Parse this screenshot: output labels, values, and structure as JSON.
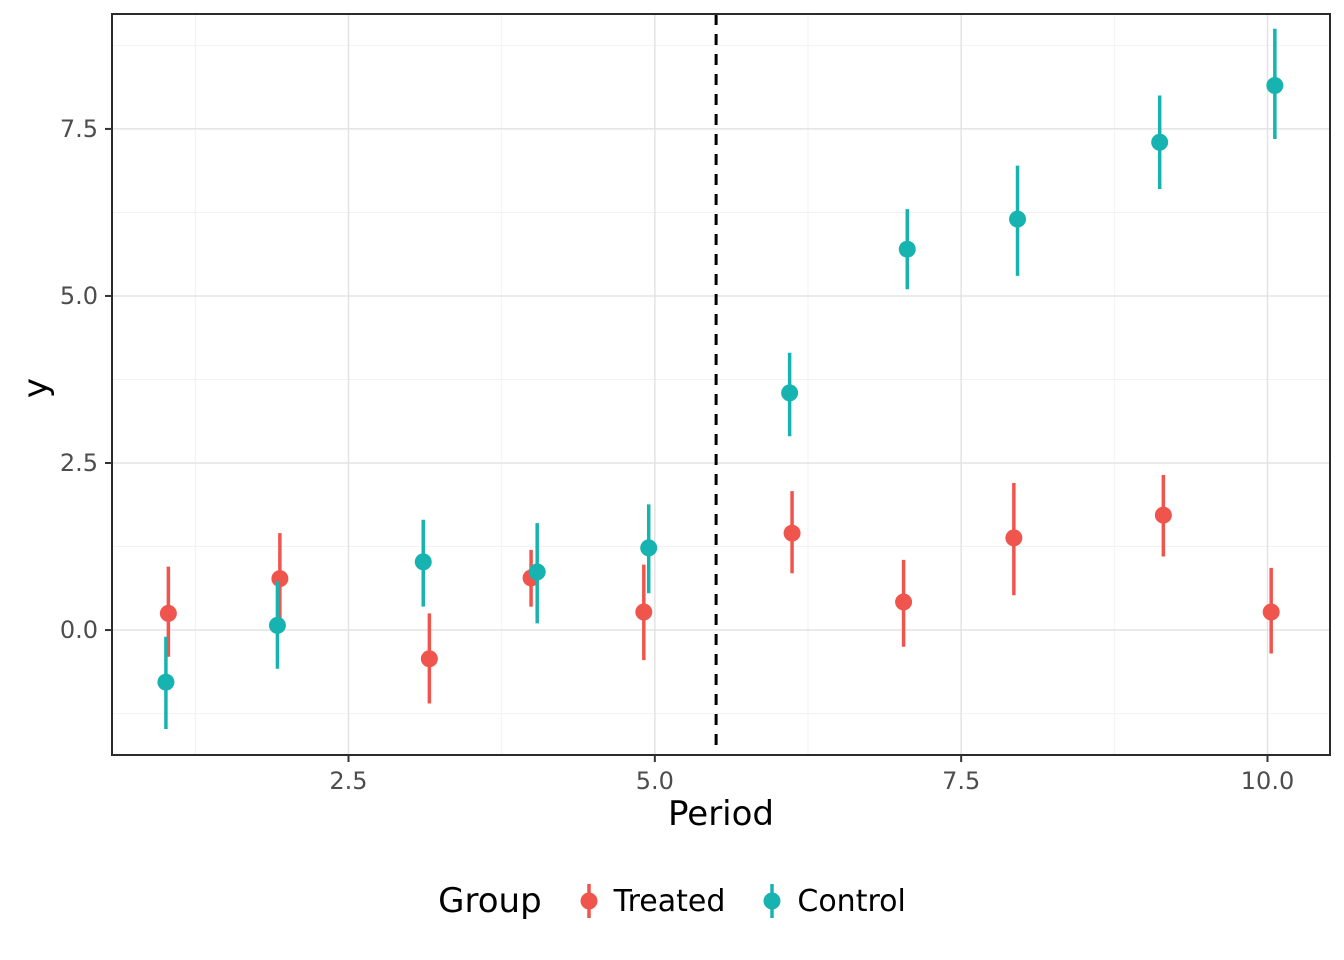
{
  "chart_data": {
    "type": "scatter",
    "subtype": "pointrange",
    "title": "",
    "xlabel": "Period",
    "ylabel": "y",
    "xlim": [
      0.57,
      10.51
    ],
    "ylim": [
      -1.87,
      9.22
    ],
    "grid": "on",
    "panel_border": true,
    "x_ticks": [
      {
        "v": 2.5,
        "label": "2.5"
      },
      {
        "v": 5.0,
        "label": "5.0"
      },
      {
        "v": 7.5,
        "label": "7.5"
      },
      {
        "v": 10.0,
        "label": "10.0"
      }
    ],
    "y_ticks": [
      {
        "v": 0.0,
        "label": "0.0"
      },
      {
        "v": 2.5,
        "label": "2.5"
      },
      {
        "v": 5.0,
        "label": "5.0"
      },
      {
        "v": 7.5,
        "label": "7.5"
      }
    ],
    "vline": {
      "x": 5.5,
      "style": "dashed",
      "color": "#000000"
    },
    "legend": {
      "title": "Group",
      "position": "bottom",
      "entries": [
        {
          "label": "Treated",
          "color": "#F0554D"
        },
        {
          "label": "Control",
          "color": "#17B3B0"
        }
      ]
    },
    "series": [
      {
        "name": "Treated",
        "color": "#F0554D",
        "points": [
          {
            "x": 1.03,
            "y": 0.25,
            "ymin": -0.4,
            "ymax": 0.95
          },
          {
            "x": 1.94,
            "y": 0.77,
            "ymin": 0.05,
            "ymax": 1.45
          },
          {
            "x": 3.16,
            "y": -0.43,
            "ymin": -1.1,
            "ymax": 0.25
          },
          {
            "x": 3.99,
            "y": 0.78,
            "ymin": 0.35,
            "ymax": 1.2
          },
          {
            "x": 4.91,
            "y": 0.27,
            "ymin": -0.45,
            "ymax": 0.98
          },
          {
            "x": 6.12,
            "y": 1.45,
            "ymin": 0.85,
            "ymax": 2.08
          },
          {
            "x": 7.03,
            "y": 0.42,
            "ymin": -0.25,
            "ymax": 1.05
          },
          {
            "x": 7.93,
            "y": 1.38,
            "ymin": 0.52,
            "ymax": 2.2
          },
          {
            "x": 9.15,
            "y": 1.72,
            "ymin": 1.1,
            "ymax": 2.32
          },
          {
            "x": 10.03,
            "y": 0.27,
            "ymin": -0.35,
            "ymax": 0.93
          }
        ]
      },
      {
        "name": "Control",
        "color": "#17B3B0",
        "points": [
          {
            "x": 1.01,
            "y": -0.78,
            "ymin": -1.48,
            "ymax": -0.1
          },
          {
            "x": 1.92,
            "y": 0.07,
            "ymin": -0.58,
            "ymax": 0.73
          },
          {
            "x": 3.11,
            "y": 1.02,
            "ymin": 0.35,
            "ymax": 1.65
          },
          {
            "x": 4.04,
            "y": 0.87,
            "ymin": 0.1,
            "ymax": 1.6
          },
          {
            "x": 4.95,
            "y": 1.23,
            "ymin": 0.55,
            "ymax": 1.88
          },
          {
            "x": 6.1,
            "y": 3.55,
            "ymin": 2.9,
            "ymax": 4.15
          },
          {
            "x": 7.06,
            "y": 5.7,
            "ymin": 5.1,
            "ymax": 6.3
          },
          {
            "x": 7.96,
            "y": 6.15,
            "ymin": 5.3,
            "ymax": 6.95
          },
          {
            "x": 9.12,
            "y": 7.3,
            "ymin": 6.6,
            "ymax": 8.0
          },
          {
            "x": 10.06,
            "y": 8.15,
            "ymin": 7.35,
            "ymax": 9.0
          }
        ]
      }
    ]
  }
}
